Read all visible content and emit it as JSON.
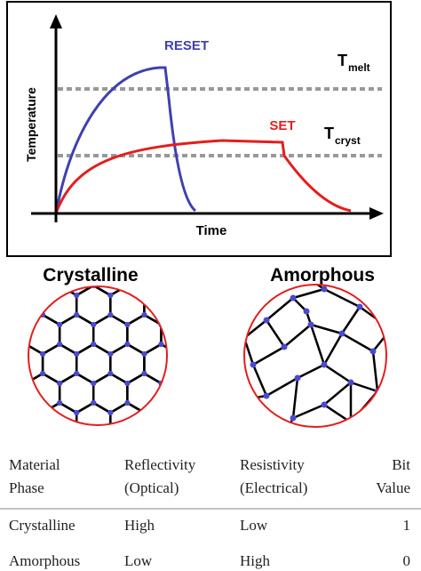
{
  "chart": {
    "y_axis_label": "Temperature",
    "x_axis_label": "Time",
    "curves": [
      {
        "label": "RESET",
        "color": "#4040b0"
      },
      {
        "label": "SET",
        "color": "#e41e1e"
      }
    ],
    "thresholds": [
      {
        "symbol": "T",
        "subscript": "melt"
      },
      {
        "symbol": "T",
        "subscript": "cryst"
      }
    ]
  },
  "structures": [
    {
      "label": "Crystalline"
    },
    {
      "label": "Amorphous"
    }
  ],
  "table": {
    "header": [
      [
        "Material",
        "Phase"
      ],
      [
        "Reflectivity",
        "(Optical)"
      ],
      [
        "Resistivity",
        "(Electrical)"
      ],
      [
        "Bit",
        "Value"
      ]
    ],
    "rows": [
      [
        "Crystalline",
        "High",
        "Low",
        "1"
      ],
      [
        "Amorphous",
        "Low",
        "High",
        "0"
      ]
    ]
  }
}
